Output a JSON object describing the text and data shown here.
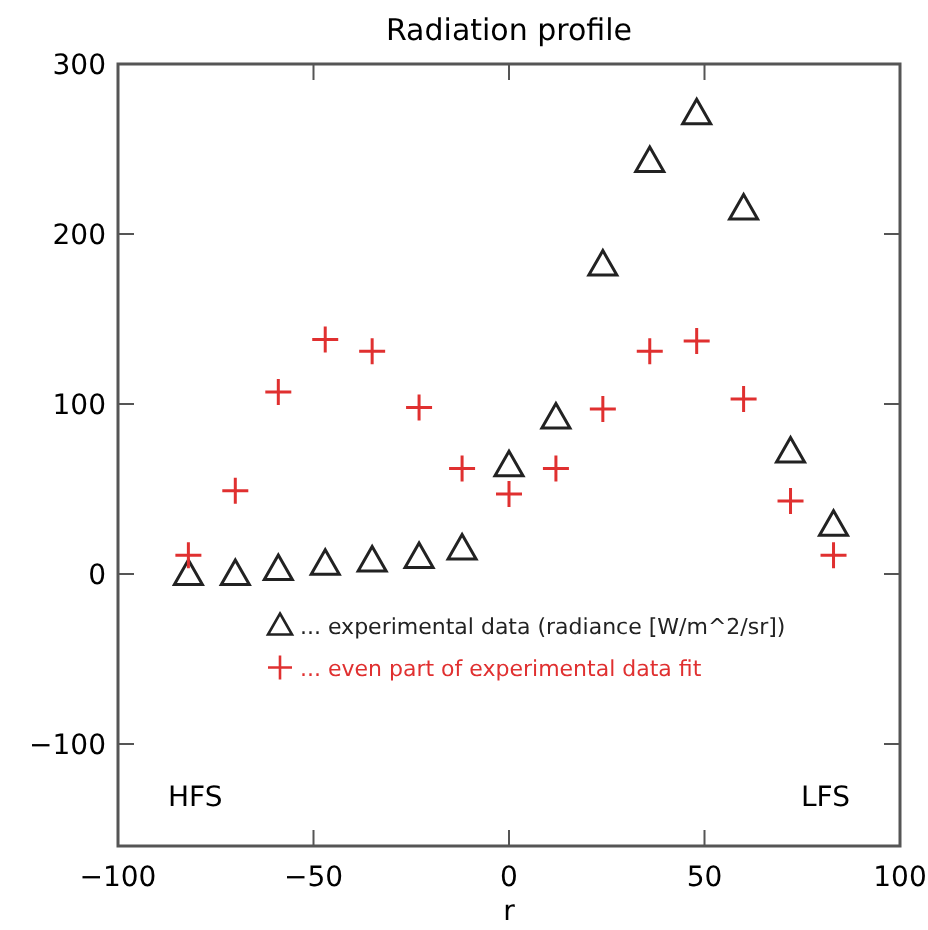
{
  "chart_data": {
    "type": "scatter",
    "title": "Radiation profile",
    "xlabel": "r",
    "x": [
      -82,
      -70,
      -59,
      -47,
      -35,
      -23,
      -12,
      0,
      12,
      24,
      36,
      48,
      60,
      72,
      83
    ],
    "series": [
      {
        "name": "... experimental data (radiance [W/m^2/sr])",
        "color": "#222222",
        "marker": "triangle",
        "values": [
          0,
          0,
          3,
          6,
          8,
          10,
          15,
          64,
          92,
          182,
          243,
          271,
          215,
          72,
          29
        ]
      },
      {
        "name": "... even part of experimental data fit",
        "color": "#e03030",
        "marker": "cross",
        "values": [
          11,
          49,
          107,
          138,
          131,
          98,
          62,
          47,
          62,
          97,
          131,
          137,
          103,
          43,
          11
        ]
      }
    ],
    "xlim": [
      -100,
      100
    ],
    "xticks": [
      -100,
      -50,
      0,
      50,
      100
    ],
    "ylim": [
      -160,
      300
    ],
    "yticks": [
      -100,
      0,
      100,
      200,
      300
    ],
    "annotations": [
      "HFS",
      "LFS"
    ],
    "legend": "bottom",
    "grid": false
  }
}
